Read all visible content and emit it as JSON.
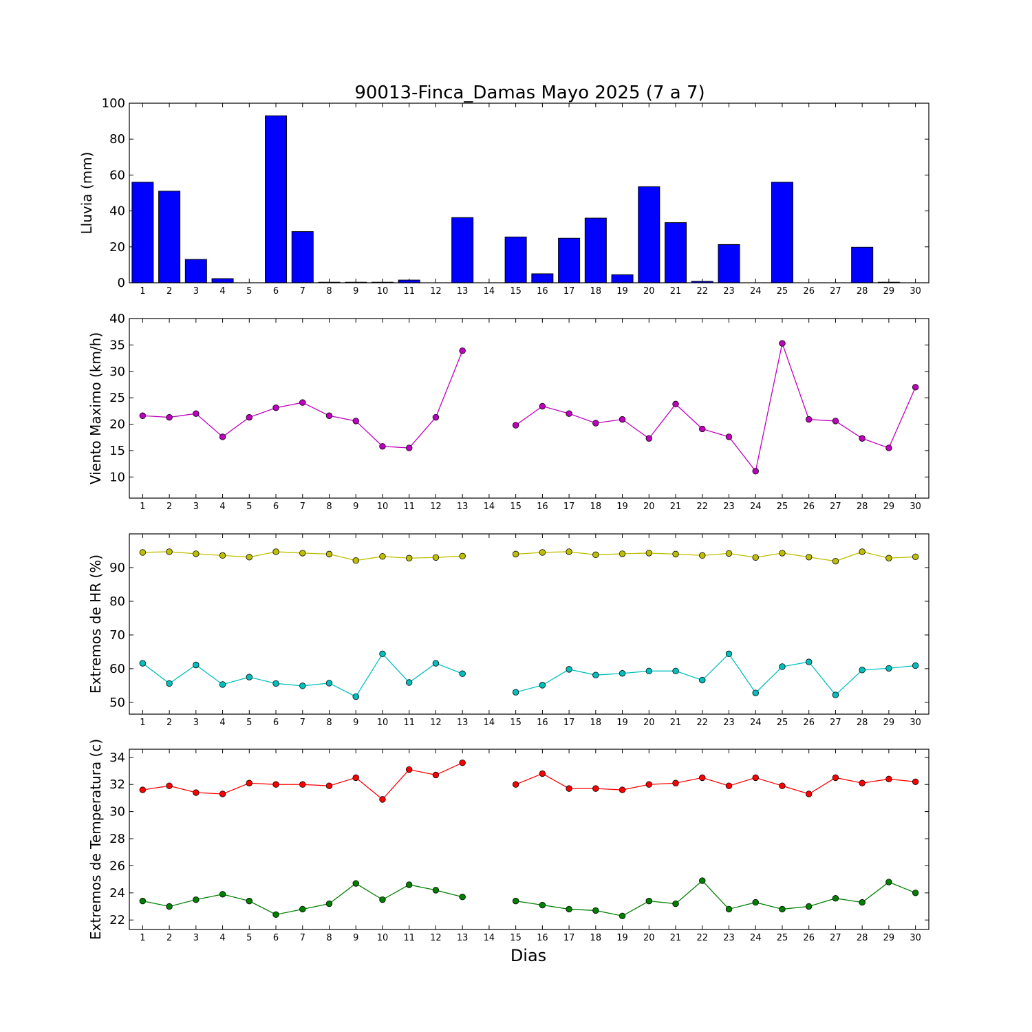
{
  "figure": {
    "title": "90013-Finca_Damas Mayo 2025  (7 a 7)",
    "xlabel": "Dias"
  },
  "chart_data": [
    {
      "type": "bar",
      "ylabel": "Lluvia (mm)",
      "ylim": [
        0,
        100
      ],
      "yticks": [
        0,
        20,
        40,
        60,
        80,
        100
      ],
      "xlim": [
        0.5,
        30.5
      ],
      "color": "#0000ff",
      "categories": [
        1,
        2,
        3,
        4,
        5,
        6,
        7,
        8,
        9,
        10,
        11,
        12,
        13,
        14,
        15,
        16,
        17,
        18,
        19,
        20,
        21,
        22,
        23,
        24,
        25,
        26,
        27,
        28,
        29,
        30
      ],
      "series": [
        {
          "values": [
            56,
            51,
            13,
            2.3,
            0,
            93,
            28.5,
            0.3,
            0.3,
            0.3,
            1.5,
            0,
            36.3,
            0,
            25.5,
            5,
            24.8,
            36,
            4.5,
            53.5,
            33.5,
            0.8,
            21.3,
            0,
            56,
            0,
            0,
            19.8,
            0.3,
            0
          ]
        }
      ]
    },
    {
      "type": "line",
      "ylabel": "Viento Maximo (km/h)",
      "ylim": [
        6,
        40
      ],
      "yticks": [
        10,
        15,
        20,
        25,
        30,
        35,
        40
      ],
      "xlim": [
        0.5,
        30.5
      ],
      "x": [
        1,
        2,
        3,
        4,
        5,
        6,
        7,
        8,
        9,
        10,
        11,
        12,
        13,
        14,
        15,
        16,
        17,
        18,
        19,
        20,
        21,
        22,
        23,
        24,
        25,
        26,
        27,
        28,
        29,
        30
      ],
      "series": [
        {
          "color": "#bf00bf",
          "values": [
            21.6,
            21.3,
            22.0,
            17.6,
            21.3,
            23.1,
            24.1,
            21.6,
            20.6,
            15.8,
            15.5,
            21.3,
            33.9,
            null,
            19.8,
            23.4,
            22.0,
            20.2,
            20.9,
            17.3,
            23.8,
            19.1,
            17.6,
            11.1,
            35.3,
            20.9,
            20.6,
            17.3,
            15.5,
            27.0
          ]
        }
      ]
    },
    {
      "type": "line",
      "ylabel": "Extremos de HR (%)",
      "ylim": [
        46.5,
        100
      ],
      "yticks": [
        50,
        60,
        70,
        80,
        90
      ],
      "xlim": [
        0.5,
        30.5
      ],
      "x": [
        1,
        2,
        3,
        4,
        5,
        6,
        7,
        8,
        9,
        10,
        11,
        12,
        13,
        14,
        15,
        16,
        17,
        18,
        19,
        20,
        21,
        22,
        23,
        24,
        25,
        26,
        27,
        28,
        29,
        30
      ],
      "series": [
        {
          "color": "#bfbf00",
          "values": [
            94.5,
            94.7,
            94.1,
            93.6,
            93.1,
            94.7,
            94.3,
            94.0,
            92.1,
            93.3,
            92.8,
            93.0,
            93.4,
            null,
            94.0,
            94.5,
            94.7,
            93.8,
            94.1,
            94.3,
            94.0,
            93.6,
            94.2,
            93.0,
            94.3,
            93.1,
            91.9,
            94.7,
            92.8,
            93.2
          ]
        },
        {
          "color": "#00bfbf",
          "values": [
            61.6,
            55.6,
            61.1,
            55.3,
            57.5,
            55.6,
            54.9,
            55.7,
            51.7,
            64.4,
            55.9,
            61.6,
            58.5,
            null,
            53.0,
            55.1,
            59.8,
            58.1,
            58.6,
            59.3,
            59.3,
            56.6,
            64.4,
            52.8,
            60.6,
            62.0,
            52.2,
            59.6,
            60.1,
            60.9
          ]
        }
      ]
    },
    {
      "type": "line",
      "ylabel": "Extremos de Temperatura (c)",
      "ylim": [
        21.3,
        34.6
      ],
      "yticks": [
        22,
        24,
        26,
        28,
        30,
        32,
        34
      ],
      "xlim": [
        0.5,
        30.5
      ],
      "x": [
        1,
        2,
        3,
        4,
        5,
        6,
        7,
        8,
        9,
        10,
        11,
        12,
        13,
        14,
        15,
        16,
        17,
        18,
        19,
        20,
        21,
        22,
        23,
        24,
        25,
        26,
        27,
        28,
        29,
        30
      ],
      "series": [
        {
          "color": "#ff0000",
          "values": [
            31.6,
            31.9,
            31.4,
            31.3,
            32.1,
            32.0,
            32.0,
            31.9,
            32.5,
            30.9,
            33.1,
            32.7,
            33.6,
            null,
            32.0,
            32.8,
            31.7,
            31.7,
            31.6,
            32.0,
            32.1,
            32.5,
            31.9,
            32.5,
            31.9,
            31.3,
            32.5,
            32.1,
            32.4,
            32.2
          ]
        },
        {
          "color": "#008000",
          "values": [
            23.4,
            23.0,
            23.5,
            23.9,
            23.4,
            22.4,
            22.8,
            23.2,
            24.7,
            23.5,
            24.6,
            24.2,
            23.7,
            null,
            23.4,
            23.1,
            22.8,
            22.7,
            22.3,
            23.4,
            23.2,
            24.9,
            22.8,
            23.3,
            22.8,
            23.0,
            23.6,
            23.3,
            24.8,
            24.0
          ]
        }
      ]
    }
  ]
}
